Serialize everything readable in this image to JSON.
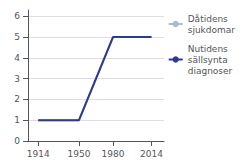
{
  "chart_data": {
    "type": "line",
    "x": [
      1914,
      1950,
      1980,
      2014
    ],
    "series": [
      {
        "name": "Dåtidens\nsjukdomar",
        "color": "#a8becc",
        "values": [
          1,
          1,
          5,
          5
        ]
      },
      {
        "name": "Nutidens\nsällsynta\ndiagnoser",
        "color": "#2e3a8c",
        "values": [
          1,
          1,
          5,
          5
        ]
      }
    ],
    "xlim": [
      1905,
      2025
    ],
    "xticks": [
      1914,
      1950,
      1980,
      2014
    ],
    "ylim": [
      0,
      6.3
    ],
    "yticks": [
      0,
      1,
      2,
      3,
      4,
      5,
      6
    ],
    "grid": true,
    "legend": "right"
  }
}
